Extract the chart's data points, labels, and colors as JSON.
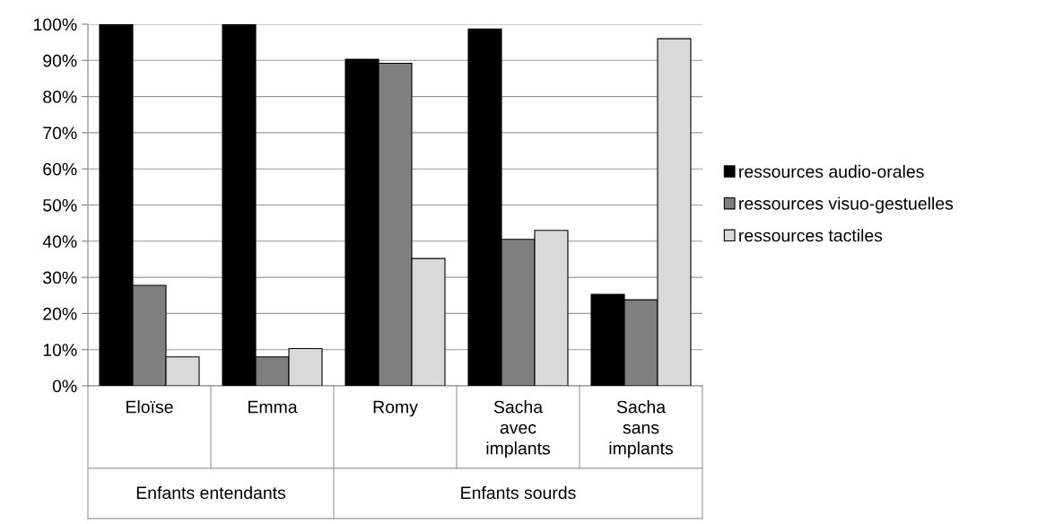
{
  "chart_data": {
    "type": "bar",
    "categories": [
      "Eloïse",
      "Emma",
      "Romy",
      "Sacha\navec\nimplants",
      "Sacha\nsans\nimplants"
    ],
    "series": [
      {
        "name": "ressources audio-orales",
        "color": "#000000",
        "values": [
          100,
          100,
          90.3,
          98.7,
          25.3
        ]
      },
      {
        "name": "ressources visuo-gestuelles",
        "color": "#7f7f7f",
        "values": [
          27.8,
          8,
          89.2,
          40.5,
          23.8
        ]
      },
      {
        "name": "ressources tactiles",
        "color": "#d9d9d9",
        "values": [
          8,
          10.3,
          35.2,
          43,
          96
        ]
      }
    ],
    "ylim": [
      0,
      100
    ],
    "yticks": [
      {
        "value": 0,
        "label": "0%"
      },
      {
        "value": 10,
        "label": "10%"
      },
      {
        "value": 20,
        "label": "20%"
      },
      {
        "value": 30,
        "label": "30%"
      },
      {
        "value": 40,
        "label": "40%"
      },
      {
        "value": 50,
        "label": "50%"
      },
      {
        "value": 60,
        "label": "60%"
      },
      {
        "value": 70,
        "label": "70%"
      },
      {
        "value": 80,
        "label": "80%"
      },
      {
        "value": 90,
        "label": "90%"
      },
      {
        "value": 100,
        "label": "100%"
      }
    ],
    "grid": "y",
    "legend": "right",
    "annotations": [
      "Enfants entendants",
      "Enfants sourds"
    ]
  }
}
